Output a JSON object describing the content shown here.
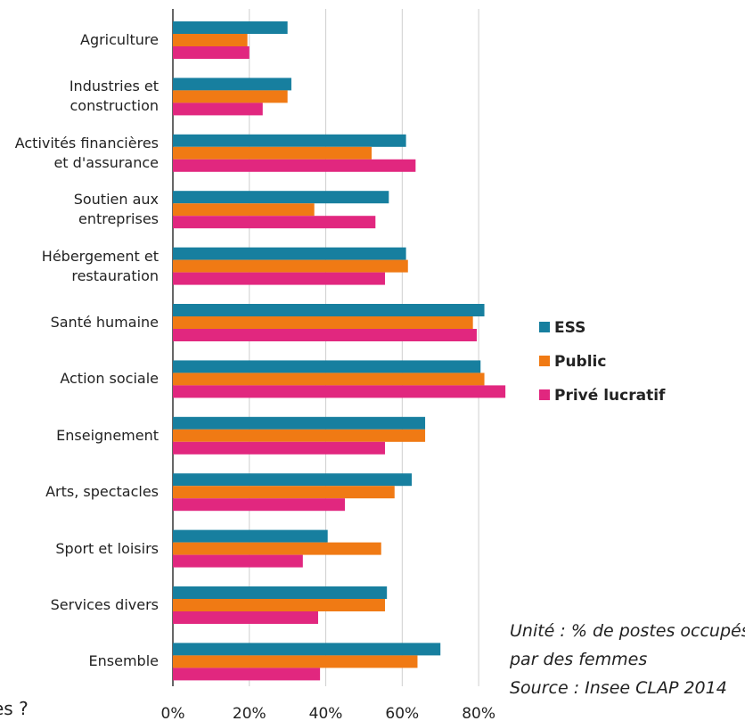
{
  "chart_data": {
    "type": "barh",
    "categories": [
      "Agriculture",
      "Industries et\nconstruction",
      "Activités financières\net d'assurance",
      "Soutien aux\nentreprises",
      "Hébergement et\nrestauration",
      "Santé humaine",
      "Action sociale",
      "Enseignement",
      "Arts, spectacles",
      "Sport et loisirs",
      "Services divers",
      "Ensemble"
    ],
    "series": [
      {
        "name": "ESS",
        "color": "#177f9f",
        "values": [
          30,
          31,
          61,
          56.5,
          61,
          81.5,
          80.5,
          66,
          62.5,
          40.5,
          56,
          70
        ]
      },
      {
        "name": "Public",
        "color": "#f07a14",
        "values": [
          19.5,
          30,
          52,
          37,
          61.5,
          78.5,
          81.5,
          66,
          58,
          54.5,
          55.5,
          64
        ]
      },
      {
        "name": "Privé lucratif",
        "color": "#e1277f",
        "values": [
          20,
          23.5,
          63.5,
          53,
          55.5,
          79.5,
          87,
          55.5,
          45,
          34,
          38,
          38.5
        ]
      }
    ],
    "xlim": [
      0,
      90
    ],
    "xticks": [
      {
        "value": 0,
        "label": "0%"
      },
      {
        "value": 20,
        "label": "20%"
      },
      {
        "value": 40,
        "label": "40%"
      },
      {
        "value": 60,
        "label": "60%"
      },
      {
        "value": 80,
        "label": "80%"
      }
    ],
    "grid": true,
    "legend": "right",
    "annotations": [
      "Unité : % de postes occupés",
      "par des femmes",
      "Source : Insee CLAP 2014",
      "es ?"
    ]
  }
}
